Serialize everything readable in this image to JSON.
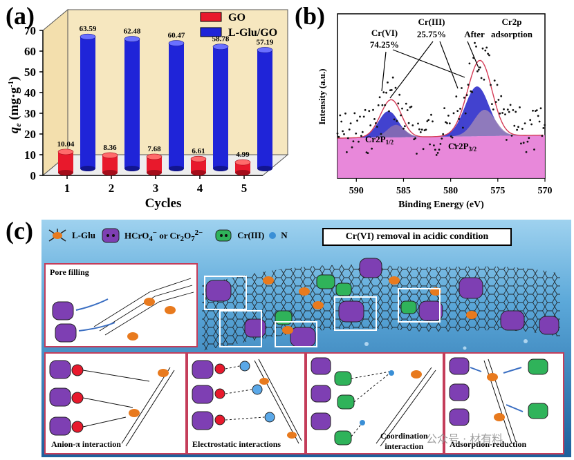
{
  "panels": {
    "a": {
      "label": "(a)"
    },
    "b": {
      "label": "(b)"
    },
    "c": {
      "label": "(c)"
    }
  },
  "chart_data": [
    {
      "type": "bar",
      "title": "",
      "xlabel": "Cycles",
      "ylabel": "qe (mg·g⁻¹)",
      "ylim": [
        0,
        70
      ],
      "yticks": [
        0,
        10,
        20,
        30,
        40,
        50,
        60,
        70
      ],
      "categories": [
        "1",
        "2",
        "3",
        "4",
        "5"
      ],
      "series": [
        {
          "name": "GO",
          "color": "#e8192c",
          "values": [
            10.04,
            8.36,
            7.68,
            6.61,
            4.99
          ]
        },
        {
          "name": "L-Glu/GO",
          "color": "#1f24d8",
          "values": [
            63.59,
            62.48,
            60.47,
            58.78,
            57.19
          ]
        }
      ],
      "value_labels": {
        "GO": [
          "10.04",
          "8.36",
          "7.68",
          "6.61",
          "4.99"
        ],
        "L-Glu/GO": [
          "63.59",
          "62.48",
          "60.47",
          "58.78",
          "57.19"
        ]
      },
      "legend": "top-right",
      "grid": false
    },
    {
      "type": "line",
      "title": "XPS Cr2p After adsorption",
      "xlabel": "Binding Energy (eV)",
      "ylabel": "Intensity (a.u.)",
      "xlim": [
        592,
        570
      ],
      "xticks": [
        590,
        585,
        580,
        575,
        570
      ],
      "peaks": [
        {
          "name": "Cr(VI) 2p1/2",
          "center_eV": 586.6
        },
        {
          "name": "Cr(III) 2p1/2",
          "center_eV": 585.8
        },
        {
          "name": "Cr(VI) 2p3/2",
          "center_eV": 577.2
        },
        {
          "name": "Cr(III) 2p3/2",
          "center_eV": 576.4
        }
      ],
      "annotations": {
        "cr6_name": "Cr(VI)",
        "cr6_pct": "74.25%",
        "cr3_name": "Cr(III)",
        "cr3_pct": "25.75%",
        "after": "After",
        "spectrum": "Cr2p",
        "adsorption": "adsorption",
        "peak_left": "Cr2P",
        "peak_left_sub": "1/2",
        "peak_right": "Cr2P",
        "peak_right_sub": "3/2"
      }
    }
  ],
  "schematic": {
    "legend": {
      "lglu": "L-Glu",
      "hcro4_a": "HCrO",
      "hcro4_sub": "4",
      "hcro4_sup": "−",
      "or": " or Cr",
      "cr2o7_sub": "2",
      "o7": "O",
      "o7_sub": "7",
      "o7_sup": "2−",
      "cr3": "Cr(III)",
      "n": "N"
    },
    "title_box": "Cr(VI) removal in acidic condition",
    "insets": {
      "pore": "Pore filling",
      "anion": "Anion-π interaction",
      "electro": "Electrostatic interactions",
      "coord_1": "Coordination",
      "coord_2": "interaction",
      "adsorb": "Adsorption-reduction"
    },
    "watermark": "公众号 · 材有料"
  },
  "colors": {
    "go_red": "#e8192c",
    "lglu_blue": "#1f24d8",
    "bg_tan": "#f6e7bf",
    "sea_blue": "#2e7ab8",
    "inset_border": "#c43d5a"
  }
}
